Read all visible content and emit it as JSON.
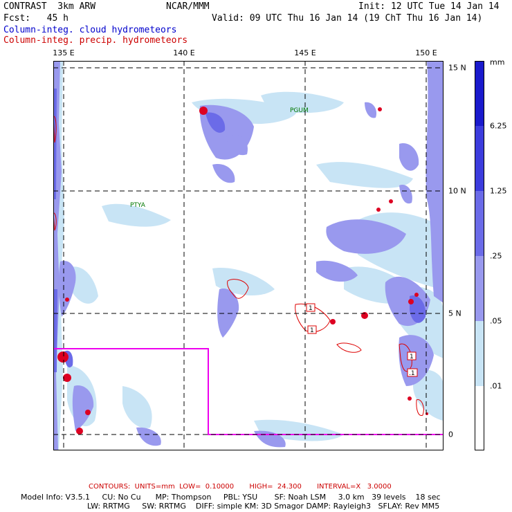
{
  "header": {
    "title": "CONTRAST  3km ARW",
    "org": "NCAR/MMM",
    "init": "Init: 12 UTC Tue 14 Jan 14",
    "fcst": "Fcst:   45 h",
    "valid": "Valid: 09 UTC Thu 16 Jan 14 (19 ChT Thu 16 Jan 14)",
    "field1": "Column-integ. cloud hydrometeors",
    "field2": "Column-integ. precip. hydrometeors"
  },
  "lon_labels": [
    "135 E",
    "140 E",
    "145 E",
    "150 E"
  ],
  "lat_labels": [
    "15 N",
    "10 N",
    "5 N",
    "0"
  ],
  "places": [
    "PGUM",
    "PTYA"
  ],
  "colorbar": {
    "unit": "mm",
    "levels": [
      "6.25",
      "1.25",
      ".25",
      ".05",
      ".01"
    ],
    "colors": [
      "#1a1acc",
      "#3c3cdd",
      "#6b6be8",
      "#9999ee",
      "#c8e4f5",
      "#ffffff"
    ]
  },
  "contour_labels": [
    "1",
    "1",
    "1",
    ".1"
  ],
  "footer": {
    "contours": "CONTOURS:  UNITS=mm  LOW=  0.10000       HIGH=  24.300       INTERVAL=X   3.0000",
    "model_line1": "Model Info: V3.5.1     CU: No Cu      MP: Thompson     PBL: YSU       SF: Noah LSM     3.0 km   39 levels    18 sec",
    "model_line2": "LW: RRTMG     SW: RRTMG    DIFF: simple KM: 3D Smagor DAMP: Rayleigh3   SFLAY: Rev MM5"
  }
}
